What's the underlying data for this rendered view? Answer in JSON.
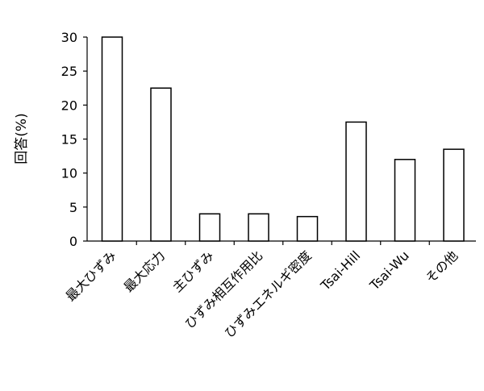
{
  "chart_data": {
    "type": "bar",
    "title": "",
    "xlabel": "",
    "ylabel": "回答(%)",
    "ylim": [
      0,
      30
    ],
    "yticks": [
      0,
      5,
      10,
      15,
      20,
      25,
      30
    ],
    "grid": false,
    "legend": "none",
    "categories": [
      "最大ひずみ",
      "最大応力",
      "主ひずみ",
      "ひずみ相互作用比",
      "ひずみエネルギ密度",
      "Tsai-Hill",
      "Tsai-Wu",
      "その他"
    ],
    "values": [
      30,
      22.5,
      4,
      4,
      3.6,
      17.5,
      12,
      13.5
    ],
    "colors": {
      "bar_fill": "#ffffff",
      "bar_stroke": "#000000",
      "axis": "#000000"
    }
  }
}
